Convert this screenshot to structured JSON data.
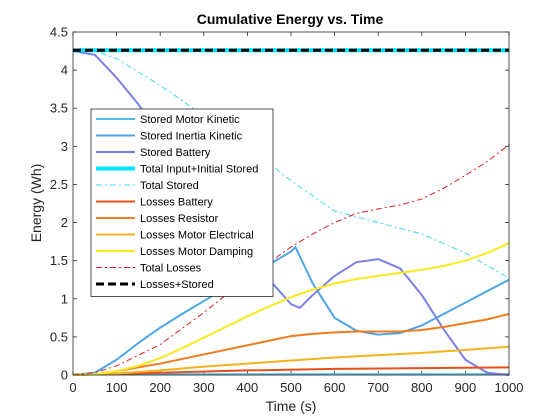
{
  "chart_data": {
    "type": "line",
    "title": "Cumulative Energy vs. Time",
    "xlabel": "Time (s)",
    "ylabel": "Energy (Wh)",
    "xlim": [
      0,
      1000
    ],
    "ylim": [
      0,
      4.5
    ],
    "xticks": [
      0,
      100,
      200,
      300,
      400,
      500,
      600,
      700,
      800,
      900,
      1000
    ],
    "yticks": [
      0,
      0.5,
      1,
      1.5,
      2,
      2.5,
      3,
      3.5,
      4,
      4.5
    ],
    "grid": false,
    "legend_position": "left-center",
    "series": [
      {
        "name": "Stored Motor Kinetic",
        "color": "#4dbeee",
        "width": 2,
        "dash": "",
        "x": [
          0,
          1000
        ],
        "y": [
          0.01,
          0.01
        ]
      },
      {
        "name": "Stored Inertia Kinetic",
        "color": "#4da6e8",
        "width": 2,
        "dash": "",
        "x": [
          0,
          50,
          100,
          150,
          200,
          250,
          300,
          350,
          400,
          450,
          500,
          510,
          550,
          600,
          650,
          700,
          750,
          800,
          850,
          900,
          950,
          1000
        ],
        "y": [
          0,
          0.03,
          0.2,
          0.42,
          0.62,
          0.8,
          0.97,
          1.14,
          1.3,
          1.45,
          1.62,
          1.68,
          1.2,
          0.75,
          0.58,
          0.53,
          0.55,
          0.65,
          0.8,
          0.95,
          1.1,
          1.25
        ]
      },
      {
        "name": "Stored Battery",
        "color": "#7b7fe6",
        "width": 2,
        "dash": "",
        "x": [
          0,
          50,
          100,
          150,
          200,
          250,
          300,
          350,
          400,
          450,
          500,
          520,
          550,
          600,
          650,
          700,
          750,
          800,
          850,
          900,
          950,
          1000
        ],
        "y": [
          4.25,
          4.2,
          3.9,
          3.55,
          3.15,
          2.75,
          2.4,
          2.0,
          1.6,
          1.25,
          0.93,
          0.88,
          1.05,
          1.3,
          1.48,
          1.52,
          1.4,
          1.05,
          0.6,
          0.2,
          0.03,
          0.0
        ]
      },
      {
        "name": "Total Input+Initial Stored",
        "color": "#00e5ff",
        "width": 4,
        "dash": "",
        "x": [
          0,
          1000
        ],
        "y": [
          4.26,
          4.26
        ]
      },
      {
        "name": "Total Stored",
        "color": "#3fd9e6",
        "width": 1,
        "dash": "6 3 2 3",
        "x": [
          0,
          50,
          100,
          200,
          300,
          400,
          500,
          600,
          700,
          800,
          900,
          1000
        ],
        "y": [
          4.26,
          4.25,
          4.15,
          3.8,
          3.4,
          3.0,
          2.55,
          2.15,
          2.0,
          1.85,
          1.6,
          1.27
        ]
      },
      {
        "name": "Losses Battery",
        "color": "#e8501a",
        "width": 2,
        "dash": "",
        "x": [
          0,
          200,
          400,
          600,
          800,
          1000
        ],
        "y": [
          0,
          0.03,
          0.06,
          0.08,
          0.09,
          0.1
        ]
      },
      {
        "name": "Losses Resistor",
        "color": "#f07c1e",
        "width": 2,
        "dash": "",
        "x": [
          0,
          50,
          100,
          200,
          300,
          400,
          500,
          550,
          600,
          650,
          700,
          750,
          800,
          850,
          900,
          950,
          1000
        ],
        "y": [
          0,
          0.01,
          0.05,
          0.15,
          0.27,
          0.39,
          0.51,
          0.54,
          0.56,
          0.57,
          0.57,
          0.57,
          0.59,
          0.63,
          0.68,
          0.73,
          0.8
        ]
      },
      {
        "name": "Losses Motor Electrical",
        "color": "#f4b21c",
        "width": 2,
        "dash": "",
        "x": [
          0,
          100,
          200,
          300,
          400,
          500,
          600,
          700,
          800,
          900,
          1000
        ],
        "y": [
          0,
          0.02,
          0.06,
          0.11,
          0.15,
          0.19,
          0.23,
          0.26,
          0.29,
          0.33,
          0.37
        ]
      },
      {
        "name": "Losses Motor Damping",
        "color": "#f7ea1f",
        "width": 2,
        "dash": "",
        "x": [
          0,
          50,
          100,
          150,
          200,
          250,
          300,
          350,
          400,
          450,
          500,
          550,
          600,
          650,
          700,
          750,
          800,
          850,
          900,
          950,
          1000
        ],
        "y": [
          0,
          0.01,
          0.05,
          0.12,
          0.22,
          0.35,
          0.49,
          0.63,
          0.77,
          0.9,
          1.02,
          1.12,
          1.2,
          1.26,
          1.3,
          1.34,
          1.38,
          1.43,
          1.5,
          1.6,
          1.73
        ]
      },
      {
        "name": "Total Losses",
        "color": "#e02020",
        "width": 1,
        "dash": "6 3 2 3",
        "x": [
          0,
          50,
          100,
          200,
          300,
          400,
          500,
          550,
          600,
          650,
          700,
          750,
          800,
          850,
          900,
          950,
          1000
        ],
        "y": [
          0,
          0.03,
          0.12,
          0.4,
          0.82,
          1.27,
          1.68,
          1.85,
          2.0,
          2.12,
          2.18,
          2.23,
          2.31,
          2.45,
          2.62,
          2.8,
          3.02
        ]
      },
      {
        "name": "Losses+Stored",
        "color": "#000000",
        "width": 3,
        "dash": "8 4",
        "x": [
          0,
          1000
        ],
        "y": [
          4.26,
          4.26
        ]
      }
    ]
  }
}
